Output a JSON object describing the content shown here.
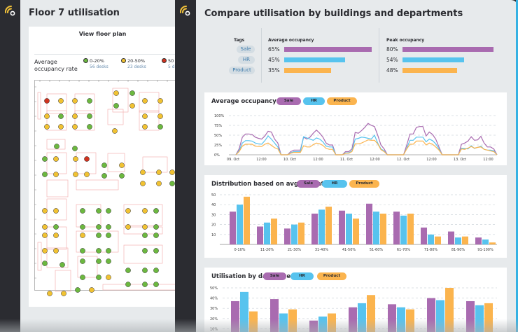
{
  "colors": {
    "sale": "#a96bb0",
    "hr": "#57c3ee",
    "product": "#fbb44e",
    "green": "#6cb83f",
    "yellow": "#f1c232",
    "red": "#d0321e",
    "accent": "#35b1e3",
    "logo": "#f2c23a"
  },
  "left_window": {
    "logo_icon": "wifi-signal-logo-icon",
    "title": "Floor 7 utilisation",
    "view_floor_plan_label": "View floor plan",
    "occupancy_label_line1": "Average",
    "occupancy_label_line2": "occupancy rate",
    "legend": [
      {
        "range": "0-20%",
        "desks": "56 desks",
        "color": "green"
      },
      {
        "range": "20-50%",
        "desks": "23 desks",
        "color": "yellow"
      },
      {
        "range": "50",
        "desks": "5 d",
        "color": "red"
      }
    ]
  },
  "right_window": {
    "logo_icon": "wifi-signal-logo-icon",
    "title": "Compare utilisation by buildings and departments",
    "comparison": {
      "tags_header": "Tags",
      "avg_header": "Average occupancy",
      "peak_header": "Peak occupancy",
      "rows": [
        {
          "tag": "Sale",
          "avg": "65%",
          "avg_value": 65,
          "peak": "80%",
          "peak_value": 80,
          "color": "sale"
        },
        {
          "tag": "HR",
          "avg": "45%",
          "avg_value": 45,
          "peak": "54%",
          "peak_value": 54,
          "color": "hr"
        },
        {
          "tag": "Product",
          "avg": "35%",
          "avg_value": 35,
          "peak": "48%",
          "peak_value": 48,
          "color": "product"
        }
      ]
    },
    "legend_labels": {
      "sale": "Sale",
      "hr": "HR",
      "product": "Product"
    }
  },
  "chart_data": [
    {
      "type": "line",
      "title": "Average occupancy",
      "ylim": [
        0,
        100
      ],
      "yticks": [
        "0%",
        "25%",
        "50%",
        "75%",
        "100%"
      ],
      "xticks": [
        "09. Oct",
        "12:00",
        "10. Oct",
        "12:00",
        "11. Oct",
        "12:00",
        "12. Oct",
        "12:00",
        "13. Oct",
        "12:00"
      ],
      "grid": true,
      "legend": "top-left",
      "series": [
        {
          "name": "Sale",
          "values": [
            0,
            15,
            45,
            53,
            53,
            52,
            45,
            42,
            40,
            48,
            60,
            58,
            40,
            30,
            0,
            0,
            0,
            8,
            12,
            12,
            12,
            45,
            40,
            45,
            55,
            63,
            55,
            45,
            30,
            25,
            25,
            0,
            0,
            0,
            8,
            8,
            15,
            57,
            55,
            62,
            70,
            80,
            75,
            72,
            50,
            25,
            15,
            0,
            0,
            0,
            0,
            0,
            0,
            25,
            53,
            53,
            70,
            72,
            72,
            48,
            58,
            52,
            40,
            20,
            0,
            0,
            0,
            0,
            0,
            0,
            27,
            30,
            35,
            46,
            37,
            38,
            47,
            30,
            20,
            20,
            15,
            0
          ]
        },
        {
          "name": "HR",
          "values": [
            0,
            10,
            30,
            36,
            36,
            35,
            30,
            28,
            27,
            36,
            48,
            40,
            30,
            20,
            0,
            0,
            0,
            5,
            8,
            8,
            8,
            46,
            43,
            40,
            37,
            43,
            40,
            33,
            22,
            20,
            20,
            0,
            0,
            0,
            5,
            5,
            10,
            40,
            42,
            45,
            44,
            42,
            40,
            50,
            30,
            15,
            10,
            0,
            0,
            0,
            0,
            0,
            0,
            17,
            37,
            37,
            45,
            45,
            45,
            33,
            40,
            36,
            28,
            15,
            0,
            0,
            0,
            0,
            0,
            0,
            17,
            16,
            15,
            23,
            16,
            19,
            22,
            14,
            12,
            12,
            10,
            0
          ]
        },
        {
          "name": "Product",
          "values": [
            0,
            8,
            22,
            27,
            27,
            27,
            22,
            21,
            21,
            27,
            30,
            24,
            18,
            15,
            0,
            0,
            0,
            4,
            6,
            6,
            6,
            23,
            20,
            20,
            26,
            30,
            28,
            24,
            16,
            14,
            14,
            0,
            0,
            0,
            4,
            4,
            8,
            28,
            28,
            30,
            34,
            38,
            37,
            37,
            28,
            13,
            8,
            0,
            0,
            0,
            0,
            0,
            0,
            15,
            27,
            27,
            35,
            35,
            35,
            25,
            30,
            27,
            20,
            12,
            0,
            0,
            0,
            0,
            0,
            0,
            15,
            14,
            17,
            21,
            17,
            19,
            20,
            14,
            12,
            10,
            8,
            0
          ]
        }
      ]
    },
    {
      "type": "bar",
      "title": "Distribution based on avg utilisation",
      "ylim": [
        0,
        50
      ],
      "yticks": [
        "10",
        "20",
        "30",
        "40",
        "50"
      ],
      "categories": [
        "0-10%",
        "11-20%",
        "21-30%",
        "31-40%",
        "41-50%",
        "51-60%",
        "61-70%",
        "71-80%",
        "81-90%",
        "91-100%"
      ],
      "grid": true,
      "legend": "top-left",
      "series": [
        {
          "name": "Sale",
          "values": [
            33,
            18,
            16,
            31,
            34,
            41,
            33,
            17,
            13,
            7
          ]
        },
        {
          "name": "HR",
          "values": [
            40,
            22,
            20,
            35,
            31,
            33,
            29,
            10,
            7,
            5
          ]
        },
        {
          "name": "Product",
          "values": [
            48,
            26,
            22,
            38,
            26,
            31,
            31,
            8,
            8,
            2
          ]
        }
      ]
    },
    {
      "type": "bar",
      "title": "Utilisation by day of week",
      "ylim": [
        0,
        50
      ],
      "yticks": [
        "10%",
        "20%",
        "30%",
        "40%",
        "50%"
      ],
      "categories": [
        "",
        "",
        "",
        "",
        "",
        "",
        ""
      ],
      "grid": true,
      "legend": "top-left",
      "series": [
        {
          "name": "Sale",
          "values": [
            37,
            39,
            18,
            31,
            34,
            40,
            37
          ]
        },
        {
          "name": "HR",
          "values": [
            46,
            25,
            22,
            35,
            31,
            38,
            33
          ]
        },
        {
          "name": "Product",
          "values": [
            27,
            29,
            25,
            43,
            29,
            50,
            35
          ]
        }
      ]
    }
  ]
}
